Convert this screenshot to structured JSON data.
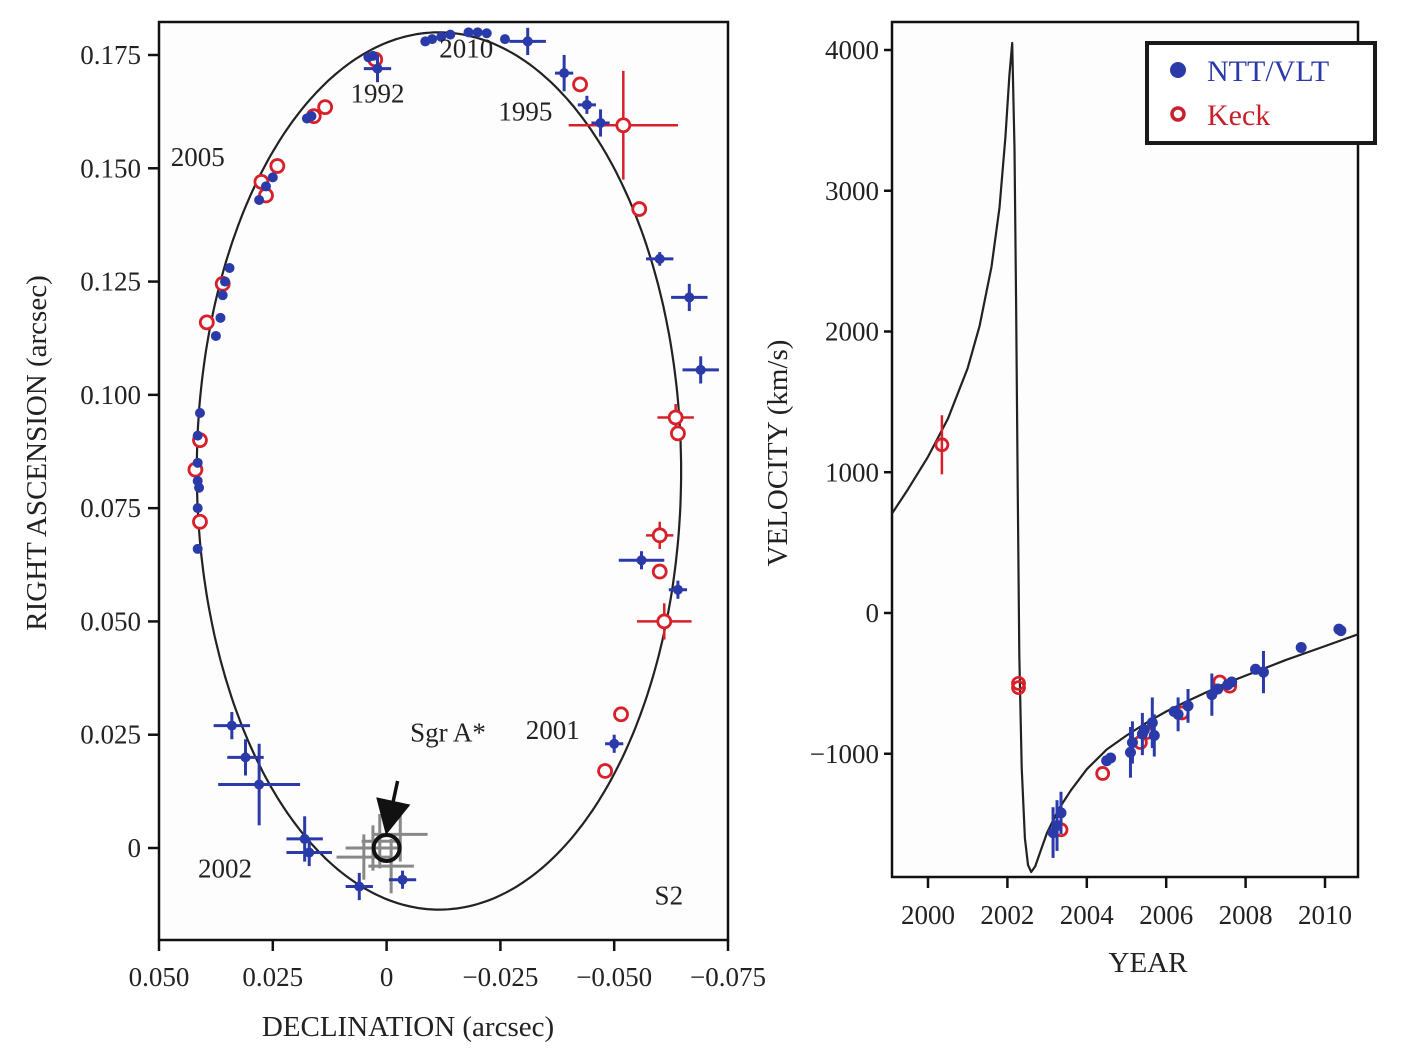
{
  "chart_data": [
    {
      "type": "scatter",
      "title": "",
      "xlabel": "DECLINATION (arcsec)",
      "ylabel": "RIGHT ASCENSION (arcsec)",
      "xlim": [
        0.05,
        -0.075
      ],
      "ylim": [
        -0.0205,
        0.1815
      ],
      "xticks": [
        0.05,
        0.025,
        0,
        -0.025,
        -0.05,
        -0.075
      ],
      "xtick_labels": [
        "0.050",
        "0.025",
        "0",
        "−0.025",
        "−0.050",
        "−0.075"
      ],
      "yticks": [
        0,
        0.025,
        0.05,
        0.075,
        0.1,
        0.125,
        0.15,
        0.175
      ],
      "ytick_labels": [
        "0",
        "0.025",
        "0.050",
        "0.075",
        "0.100",
        "0.125",
        "0.150",
        "0.175"
      ],
      "grid": false,
      "orbit_fit": {
        "center_dec": -0.0115,
        "center_ra": 0.0832,
        "semi_major_ra": 0.0968,
        "semi_minor_dec": 0.0532,
        "tilt_deg": -3.2
      },
      "annotations": [
        {
          "text": "1992",
          "dec": 0.002,
          "ra": 0.1645
        },
        {
          "text": "2010",
          "dec": -0.0175,
          "ra": 0.1745
        },
        {
          "text": "1995",
          "dec": -0.0305,
          "ra": 0.1605
        },
        {
          "text": "2005",
          "dec": 0.0415,
          "ra": 0.1505
        },
        {
          "text": "2001",
          "dec": -0.0365,
          "ra": 0.024
        },
        {
          "text": "2002",
          "dec": 0.0355,
          "ra": -0.0065
        },
        {
          "text": "S2",
          "dec": -0.062,
          "ra": -0.0125
        },
        {
          "text": "Sgr A*",
          "dec": -0.0135,
          "ra": 0.0235
        }
      ],
      "sgr_a_star": {
        "dec": 0.0,
        "ra": 0.0
      },
      "series": [
        {
          "name": "NTT/VLT",
          "color": "#2a3aa8",
          "marker": "filled-circle",
          "points": [
            {
              "dec": -0.0085,
              "ra": 0.178
            },
            {
              "dec": -0.01,
              "ra": 0.1785
            },
            {
              "dec": -0.012,
              "ra": 0.179
            },
            {
              "dec": -0.014,
              "ra": 0.1795
            },
            {
              "dec": -0.018,
              "ra": 0.18
            },
            {
              "dec": -0.02,
              "ra": 0.18
            },
            {
              "dec": -0.022,
              "ra": 0.1798
            },
            {
              "dec": -0.026,
              "ra": 0.1785
            },
            {
              "dec": -0.031,
              "ra": 0.178,
              "xerr": 0.004,
              "yerr": 0.003
            },
            {
              "dec": 0.002,
              "ra": 0.172,
              "xerr": 0.003,
              "yerr": 0.003
            },
            {
              "dec": -0.039,
              "ra": 0.171,
              "xerr": 0.002,
              "yerr": 0.004
            },
            {
              "dec": -0.044,
              "ra": 0.164,
              "xerr": 0.002,
              "yerr": 0.002
            },
            {
              "dec": -0.047,
              "ra": 0.16,
              "xerr": 0.002,
              "yerr": 0.003
            },
            {
              "dec": 0.004,
              "ra": 0.1745
            },
            {
              "dec": 0.003,
              "ra": 0.1748
            },
            {
              "dec": 0.0175,
              "ra": 0.161
            },
            {
              "dec": 0.0165,
              "ra": 0.1615
            },
            {
              "dec": 0.028,
              "ra": 0.143
            },
            {
              "dec": 0.0265,
              "ra": 0.146
            },
            {
              "dec": 0.025,
              "ra": 0.148
            },
            {
              "dec": 0.0345,
              "ra": 0.128
            },
            {
              "dec": 0.0355,
              "ra": 0.125
            },
            {
              "dec": 0.036,
              "ra": 0.122
            },
            {
              "dec": 0.0365,
              "ra": 0.117
            },
            {
              "dec": 0.0375,
              "ra": 0.113
            },
            {
              "dec": 0.041,
              "ra": 0.096
            },
            {
              "dec": 0.0415,
              "ra": 0.091
            },
            {
              "dec": 0.0415,
              "ra": 0.085
            },
            {
              "dec": 0.0415,
              "ra": 0.081
            },
            {
              "dec": 0.0412,
              "ra": 0.0795
            },
            {
              "dec": 0.0415,
              "ra": 0.075
            },
            {
              "dec": 0.0415,
              "ra": 0.066
            },
            {
              "dec": -0.06,
              "ra": 0.13,
              "xerr": 0.003,
              "yerr": 0.0015
            },
            {
              "dec": -0.0665,
              "ra": 0.1215,
              "xerr": 0.004,
              "yerr": 0.003
            },
            {
              "dec": -0.069,
              "ra": 0.1055,
              "xerr": 0.004,
              "yerr": 0.003
            },
            {
              "dec": -0.056,
              "ra": 0.0635,
              "xerr": 0.005,
              "yerr": 0.002
            },
            {
              "dec": -0.064,
              "ra": 0.057,
              "xerr": 0.002,
              "yerr": 0.002
            },
            {
              "dec": -0.05,
              "ra": 0.023,
              "xerr": 0.002,
              "yerr": 0.002
            },
            {
              "dec": 0.034,
              "ra": 0.027,
              "xerr": 0.004,
              "yerr": 0.003
            },
            {
              "dec": 0.031,
              "ra": 0.02,
              "xerr": 0.004,
              "yerr": 0.004
            },
            {
              "dec": 0.028,
              "ra": 0.014,
              "xerr": 0.009,
              "yerr": 0.009
            },
            {
              "dec": 0.018,
              "ra": 0.002,
              "xerr": 0.004,
              "yerr": 0.005
            },
            {
              "dec": 0.017,
              "ra": -0.001,
              "xerr": 0.005,
              "yerr": 0.003
            },
            {
              "dec": 0.006,
              "ra": -0.0085,
              "xerr": 0.003,
              "yerr": 0.003
            },
            {
              "dec": -0.0035,
              "ra": -0.007,
              "xerr": 0.003,
              "yerr": 0.002
            }
          ]
        },
        {
          "name": "Keck",
          "color": "#d8202a",
          "marker": "open-circle",
          "points": [
            {
              "dec": 0.0025,
              "ra": 0.174
            },
            {
              "dec": 0.016,
              "ra": 0.1615
            },
            {
              "dec": 0.0135,
              "ra": 0.1635
            },
            {
              "dec": 0.0265,
              "ra": 0.144
            },
            {
              "dec": 0.024,
              "ra": 0.1505
            },
            {
              "dec": 0.0275,
              "ra": 0.147
            },
            {
              "dec": 0.036,
              "ra": 0.1245
            },
            {
              "dec": 0.0395,
              "ra": 0.116
            },
            {
              "dec": 0.041,
              "ra": 0.09
            },
            {
              "dec": 0.042,
              "ra": 0.0835
            },
            {
              "dec": 0.041,
              "ra": 0.072
            },
            {
              "dec": -0.0425,
              "ra": 0.1685
            },
            {
              "dec": -0.052,
              "ra": 0.1595,
              "xerr": 0.012,
              "yerr": 0.012
            },
            {
              "dec": -0.0555,
              "ra": 0.141
            },
            {
              "dec": -0.0635,
              "ra": 0.095,
              "xerr": 0.004,
              "yerr": 0.003
            },
            {
              "dec": -0.064,
              "ra": 0.0915
            },
            {
              "dec": -0.06,
              "ra": 0.069,
              "xerr": 0.003,
              "yerr": 0.003
            },
            {
              "dec": -0.06,
              "ra": 0.061
            },
            {
              "dec": -0.061,
              "ra": 0.05,
              "xerr": 0.006,
              "yerr": 0.004
            },
            {
              "dec": -0.0515,
              "ra": 0.0295
            },
            {
              "dec": -0.048,
              "ra": 0.017
            }
          ]
        },
        {
          "name": "Sgr A* flares (gray)",
          "color": "#888888",
          "marker": "error-cross",
          "points": [
            {
              "dec": 0.003,
              "ra": 0.0,
              "xerr": 0.006,
              "yerr": 0.005
            },
            {
              "dec": -0.003,
              "ra": 0.003,
              "xerr": 0.006,
              "yerr": 0.006
            },
            {
              "dec": 0.005,
              "ra": -0.002,
              "xerr": 0.006,
              "yerr": 0.005
            },
            {
              "dec": 0.0015,
              "ra": 0.0015,
              "xerr": 0.004,
              "yerr": 0.006
            },
            {
              "dec": -0.001,
              "ra": -0.004,
              "xerr": 0.005,
              "yerr": 0.006
            }
          ]
        }
      ],
      "legend": "none"
    },
    {
      "type": "line",
      "title": "",
      "xlabel": "YEAR",
      "ylabel": "VELOCITY (km/s)",
      "xlim": [
        1999.1,
        2010.85
      ],
      "ylim": [
        -1875,
        4200
      ],
      "xticks": [
        2000,
        2002,
        2004,
        2006,
        2008,
        2010
      ],
      "xtick_labels": [
        "2000",
        "2002",
        "2004",
        "2006",
        "2008",
        "2010"
      ],
      "yticks": [
        -1000,
        0,
        1000,
        2000,
        3000,
        4000
      ],
      "ytick_labels": [
        "−1000",
        "0",
        "1000",
        "2000",
        "3000",
        "4000"
      ],
      "grid": false,
      "legend": "top-right",
      "legend_entries": [
        {
          "label": "NTT/VLT",
          "color": "#2a3aa8",
          "marker": "filled-circle"
        },
        {
          "label": "Keck",
          "color": "#c8202a",
          "marker": "open-circle"
        }
      ],
      "model_curve": {
        "x": [
          1999.1,
          1999.5,
          2000.0,
          2000.5,
          2001.0,
          2001.3,
          2001.6,
          2001.8,
          2001.95,
          2002.05,
          2002.12,
          2002.18,
          2002.22,
          2002.26,
          2002.3,
          2002.36,
          2002.44,
          2002.52,
          2002.6,
          2002.7,
          2002.85,
          2003.0,
          2003.3,
          2003.6,
          2004.0,
          2004.5,
          2005.0,
          2005.5,
          2006.0,
          2006.5,
          2007.0,
          2007.5,
          2008.0,
          2008.5,
          2009.0,
          2009.5,
          2010.0,
          2010.5,
          2010.85
        ],
        "y": [
          710,
          880,
          1110,
          1380,
          1740,
          2040,
          2460,
          2880,
          3380,
          3820,
          4050,
          3300,
          2200,
          900,
          -300,
          -1100,
          -1600,
          -1790,
          -1840,
          -1800,
          -1680,
          -1560,
          -1390,
          -1260,
          -1110,
          -970,
          -870,
          -780,
          -700,
          -630,
          -565,
          -500,
          -445,
          -390,
          -335,
          -285,
          -235,
          -185,
          -150
        ]
      },
      "series": [
        {
          "name": "NTT/VLT",
          "color": "#2a3aa8",
          "points": [
            {
              "x": 2003.15,
              "y": -1560,
              "yerr": 60
            },
            {
              "x": 2003.25,
              "y": -1510,
              "yerr": 60
            },
            {
              "x": 2003.35,
              "y": -1420,
              "yerr": 50
            },
            {
              "x": 2004.5,
              "y": -1050
            },
            {
              "x": 2004.6,
              "y": -1030
            },
            {
              "x": 2005.1,
              "y": -990,
              "yerr": 60
            },
            {
              "x": 2005.15,
              "y": -920,
              "yerr": 50
            },
            {
              "x": 2005.4,
              "y": -860,
              "yerr": 50
            },
            {
              "x": 2005.45,
              "y": -830
            },
            {
              "x": 2005.65,
              "y": -780,
              "yerr": 60
            },
            {
              "x": 2005.7,
              "y": -870,
              "yerr": 50
            },
            {
              "x": 2006.2,
              "y": -700
            },
            {
              "x": 2006.3,
              "y": -720,
              "yerr": 40
            },
            {
              "x": 2006.55,
              "y": -660,
              "yerr": 40
            },
            {
              "x": 2007.15,
              "y": -580,
              "yerr": 50
            },
            {
              "x": 2007.3,
              "y": -540
            },
            {
              "x": 2007.55,
              "y": -510
            },
            {
              "x": 2007.65,
              "y": -490
            },
            {
              "x": 2008.25,
              "y": -400
            },
            {
              "x": 2008.45,
              "y": -420,
              "yerr": 50
            },
            {
              "x": 2009.4,
              "y": -245
            },
            {
              "x": 2010.35,
              "y": -115
            },
            {
              "x": 2010.4,
              "y": -125
            }
          ]
        },
        {
          "name": "Keck",
          "color": "#d8202a",
          "points": [
            {
              "x": 2000.35,
              "y": 1195,
              "yerr": 70
            },
            {
              "x": 2002.28,
              "y": -500
            },
            {
              "x": 2002.28,
              "y": -530
            },
            {
              "x": 2003.35,
              "y": -1540
            },
            {
              "x": 2004.4,
              "y": -1140
            },
            {
              "x": 2005.35,
              "y": -920
            },
            {
              "x": 2005.5,
              "y": -850
            },
            {
              "x": 2006.4,
              "y": -710
            },
            {
              "x": 2007.35,
              "y": -490
            },
            {
              "x": 2007.6,
              "y": -520
            }
          ]
        }
      ]
    }
  ]
}
